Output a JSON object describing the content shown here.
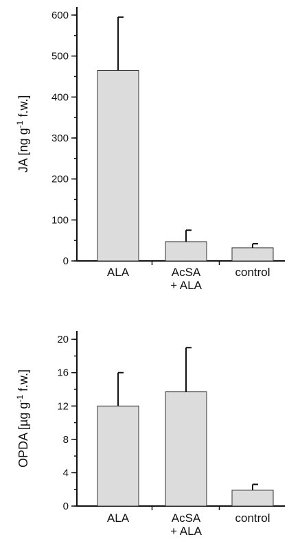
{
  "chart_data": [
    {
      "type": "bar",
      "ylabel": "JA [ng g",
      "ylabel_sup": "-1",
      "ylabel_tail": " f.w.]",
      "categories": [
        [
          "ALA"
        ],
        [
          "AcSA",
          "+ ALA"
        ],
        [
          "control"
        ]
      ],
      "values": [
        465,
        47,
        32
      ],
      "errors": [
        130,
        28,
        10
      ],
      "ylim": [
        0,
        620
      ],
      "yticks": [
        0,
        100,
        200,
        300,
        400,
        500,
        600
      ],
      "yticks_minor_step": 50,
      "bar_color": "#dcdcdc"
    },
    {
      "type": "bar",
      "ylabel": "OPDA [µg g",
      "ylabel_sup": "-1",
      "ylabel_tail": " f.w.]",
      "categories": [
        [
          "ALA"
        ],
        [
          "AcSA",
          "+ ALA"
        ],
        [
          "control"
        ]
      ],
      "values": [
        12,
        13.7,
        1.9
      ],
      "errors": [
        4,
        5.3,
        0.7
      ],
      "ylim": [
        0,
        21
      ],
      "yticks": [
        0,
        4,
        8,
        12,
        16,
        20
      ],
      "yticks_minor_step": 2,
      "bar_color": "#dcdcdc"
    }
  ]
}
